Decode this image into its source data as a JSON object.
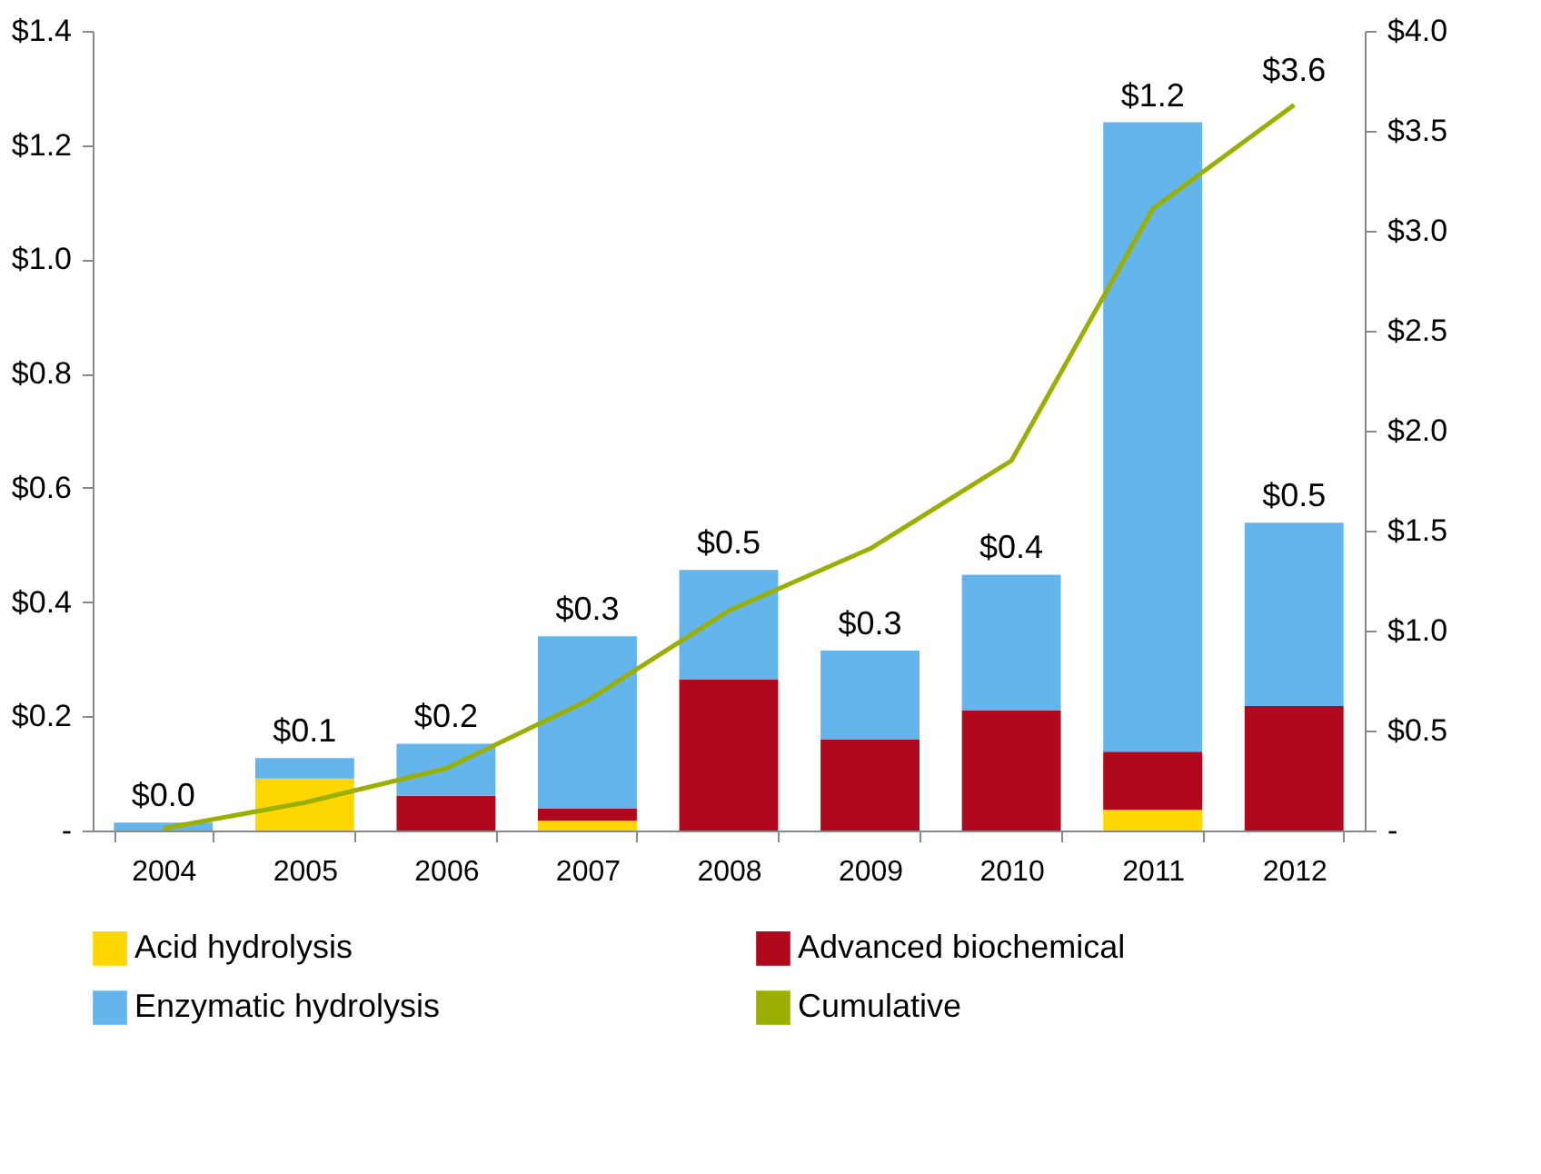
{
  "chart_data": {
    "type": "bar",
    "stacked": true,
    "categories": [
      "2004",
      "2005",
      "2006",
      "2007",
      "2008",
      "2009",
      "2010",
      "2011",
      "2012"
    ],
    "series": [
      {
        "name": "Acid hydrolysis",
        "color": "#ffd700",
        "values": [
          0,
          0.091,
          0,
          0.017,
          0,
          0,
          0,
          0.036,
          0
        ]
      },
      {
        "name": "Advanced biochemical",
        "color": "#b0091e",
        "values": [
          0,
          0,
          0.061,
          0.022,
          0.265,
          0.16,
          0.21,
          0.102,
          0.218
        ]
      },
      {
        "name": "Enzymatic hydrolysis",
        "color": "#63b5ec",
        "values": [
          0.014,
          0.036,
          0.091,
          0.301,
          0.191,
          0.155,
          0.238,
          1.102,
          0.321
        ]
      },
      {
        "name": "Cumulative",
        "type": "line",
        "axis": "y2",
        "color": "#9aaf00",
        "values": [
          0.01,
          0.14,
          0.31,
          0.65,
          1.1,
          1.41,
          1.85,
          3.11,
          3.63
        ],
        "value_labels": [
          null,
          null,
          null,
          null,
          null,
          null,
          null,
          null,
          "$3.6"
        ]
      }
    ],
    "totals": [
      "$0.0",
      "$0.1",
      "$0.2",
      "$0.3",
      "$0.5",
      "$0.3",
      "$0.4",
      "$1.2",
      "$0.5"
    ],
    "ylim": [
      0,
      1.4
    ],
    "yticks": [
      {
        "value": 0,
        "label": "-"
      },
      {
        "value": 0.2,
        "label": "$0.2"
      },
      {
        "value": 0.4,
        "label": "$0.4"
      },
      {
        "value": 0.6,
        "label": "$0.6"
      },
      {
        "value": 0.8,
        "label": "$0.8"
      },
      {
        "value": 1.0,
        "label": "$1.0"
      },
      {
        "value": 1.2,
        "label": "$1.2"
      },
      {
        "value": 1.4,
        "label": "$1.4"
      }
    ],
    "y2lim": [
      0,
      4
    ],
    "y2ticks": [
      {
        "value": 0,
        "label": "-"
      },
      {
        "value": 0.5,
        "label": "$0.5"
      },
      {
        "value": 1,
        "label": "$1.0"
      },
      {
        "value": 1.5,
        "label": "$1.5"
      },
      {
        "value": 2,
        "label": "$2.0"
      },
      {
        "value": 2.5,
        "label": "$2.5"
      },
      {
        "value": 3,
        "label": "$3.0"
      },
      {
        "value": 3.5,
        "label": "$3.5"
      },
      {
        "value": 4,
        "label": "$4.0"
      }
    ],
    "grid": false,
    "legend": "bottom"
  }
}
